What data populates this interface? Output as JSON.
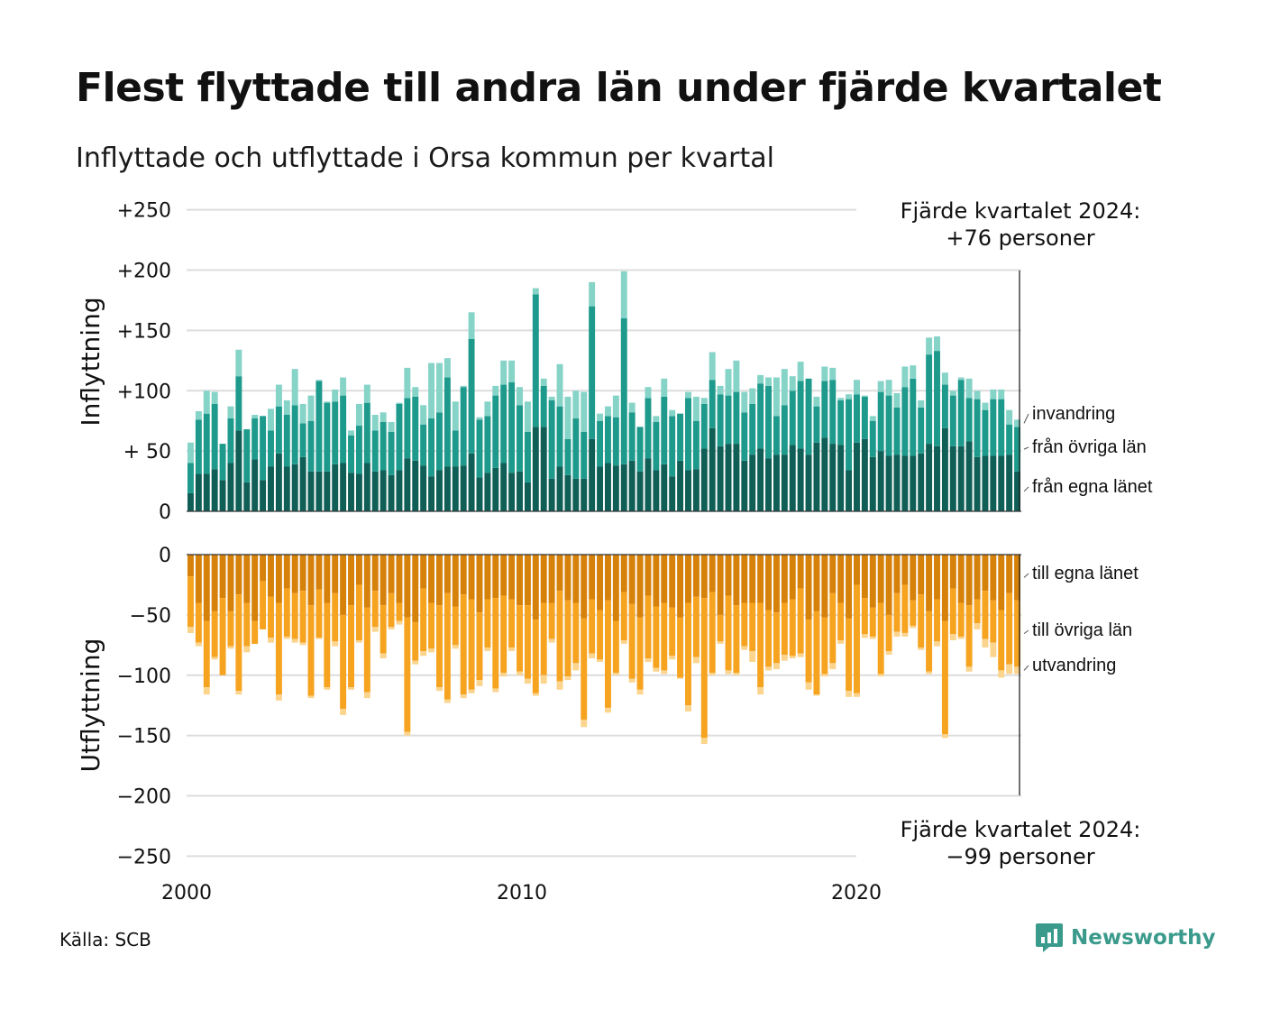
{
  "title": "Flest flyttade till andra län under fjärde kvartalet",
  "subtitle": "Inflyttade och utflyttade i Orsa kommun per kvartal",
  "source": "Källa: SCB",
  "brand": "Newsworthy",
  "colors": {
    "in_egna": "#0f5f57",
    "in_ovriga": "#1e9a8c",
    "in_invandring": "#86d3c8",
    "out_egna": "#d68109",
    "out_ovriga": "#f6a31f",
    "out_utvandring": "#fbd48e",
    "grid": "#dddddd",
    "brand": "#3a9a8c"
  },
  "chart_data": {
    "type": "bar",
    "stacked": true,
    "x_unit": "year-quarter",
    "x_ticks": [
      "2000",
      "2010",
      "2020"
    ],
    "top_panel": {
      "ylabel": "Inflyttning",
      "ylim": [
        0,
        250
      ],
      "y_ticks": [
        0,
        50,
        100,
        150,
        200,
        250
      ],
      "y_tick_labels": [
        "0",
        "+ 50",
        "+100",
        "+150",
        "+200",
        "+250"
      ],
      "annotation": {
        "line1": "Fjärde kvartalet 2024:",
        "line2": "+76 personer"
      },
      "series": [
        {
          "name": "från egna länet",
          "values": [
            15,
            31,
            31,
            35,
            26,
            40,
            67,
            24,
            43,
            26,
            37,
            48,
            37,
            39,
            45,
            33,
            33,
            33,
            39,
            40,
            32,
            31,
            40,
            33,
            34,
            30,
            34,
            44,
            42,
            38,
            29,
            34,
            37,
            37,
            38,
            48,
            28,
            32,
            36,
            40,
            32,
            33,
            24,
            70,
            70,
            27,
            37,
            30,
            27,
            27,
            60,
            37,
            40,
            38,
            39,
            42,
            33,
            44,
            34,
            39,
            29,
            42,
            34,
            35,
            52,
            69,
            54,
            56,
            56,
            42,
            47,
            52,
            44,
            47,
            47,
            55,
            52,
            47,
            57,
            61,
            56,
            55,
            34,
            57,
            60,
            45,
            50,
            46,
            47,
            46,
            46,
            48,
            56,
            54,
            69,
            54,
            54,
            58,
            45,
            46,
            46,
            46,
            47,
            33
          ]
        },
        {
          "name": "från övriga län",
          "values": [
            25,
            45,
            50,
            54,
            30,
            37,
            45,
            44,
            34,
            53,
            30,
            39,
            43,
            49,
            28,
            42,
            75,
            57,
            52,
            56,
            31,
            40,
            50,
            34,
            40,
            36,
            55,
            50,
            53,
            34,
            48,
            48,
            74,
            30,
            65,
            95,
            48,
            47,
            60,
            65,
            75,
            55,
            42,
            110,
            34,
            65,
            50,
            30,
            50,
            39,
            110,
            38,
            39,
            40,
            121,
            40,
            37,
            50,
            40,
            56,
            50,
            39,
            60,
            40,
            37,
            40,
            43,
            40,
            43,
            40,
            42,
            54,
            60,
            32,
            41,
            45,
            56,
            63,
            30,
            47,
            53,
            37,
            59,
            40,
            35,
            30,
            49,
            50,
            39,
            57,
            64,
            38,
            74,
            79,
            36,
            42,
            55,
            36,
            48,
            38,
            47,
            47,
            25,
            37
          ]
        },
        {
          "name": "invandring",
          "values": [
            17,
            7,
            19,
            10,
            0,
            10,
            22,
            0,
            3,
            0,
            18,
            18,
            12,
            30,
            16,
            21,
            1,
            1,
            10,
            15,
            4,
            18,
            15,
            13,
            8,
            8,
            1,
            25,
            8,
            16,
            46,
            41,
            16,
            24,
            1,
            22,
            2,
            12,
            8,
            20,
            18,
            15,
            25,
            5,
            6,
            3,
            35,
            35,
            23,
            33,
            20,
            6,
            8,
            18,
            39,
            8,
            0,
            9,
            5,
            15,
            5,
            0,
            5,
            20,
            5,
            23,
            7,
            22,
            26,
            17,
            13,
            7,
            7,
            32,
            30,
            12,
            16,
            0,
            8,
            12,
            10,
            2,
            4,
            12,
            1,
            4,
            9,
            13,
            12,
            17,
            11,
            6,
            14,
            12,
            10,
            4,
            2,
            16,
            7,
            6,
            8,
            8,
            12,
            6
          ]
        }
      ]
    },
    "bottom_panel": {
      "ylabel": "Utflyttning",
      "ylim": [
        -250,
        0
      ],
      "y_ticks": [
        0,
        -50,
        -100,
        -150,
        -200,
        -250
      ],
      "y_tick_labels": [
        "0",
        "−50",
        "−100",
        "−150",
        "−200",
        "−250"
      ],
      "annotation": {
        "line1": "Fjärde kvartalet 2024:",
        "line2": "−99 personer"
      },
      "series": [
        {
          "name": "till egna länet",
          "values": [
            -18,
            -40,
            -55,
            -47,
            -36,
            -47,
            -33,
            -40,
            -55,
            -22,
            -35,
            -40,
            -28,
            -32,
            -30,
            -42,
            -29,
            -40,
            -32,
            -50,
            -42,
            -25,
            -44,
            -30,
            -42,
            -32,
            -40,
            -52,
            -56,
            -28,
            -40,
            -42,
            -32,
            -43,
            -33,
            -37,
            -48,
            -37,
            -36,
            -34,
            -37,
            -42,
            -42,
            -54,
            -40,
            -40,
            -30,
            -38,
            -40,
            -53,
            -37,
            -46,
            -38,
            -55,
            -31,
            -41,
            -52,
            -34,
            -43,
            -40,
            -44,
            -52,
            -40,
            -35,
            -36,
            -31,
            -50,
            -34,
            -42,
            -40,
            -40,
            -40,
            -46,
            -48,
            -40,
            -37,
            -28,
            -54,
            -47,
            -52,
            -32,
            -40,
            -53,
            -25,
            -36,
            -44,
            -40,
            -50,
            -32,
            -25,
            -38,
            -33,
            -47,
            -37,
            -55,
            -28,
            -40,
            -42,
            -37,
            -30,
            -38,
            -46,
            -32,
            -38
          ]
        },
        {
          "name": "till övriga län",
          "values": [
            -42,
            -33,
            -55,
            -38,
            -64,
            -29,
            -80,
            -36,
            -19,
            -40,
            -34,
            -76,
            -40,
            -38,
            -43,
            -75,
            -40,
            -70,
            -40,
            -78,
            -68,
            -46,
            -70,
            -30,
            -40,
            -28,
            -15,
            -95,
            -32,
            -52,
            -38,
            -68,
            -88,
            -32,
            -83,
            -75,
            -56,
            -40,
            -75,
            -64,
            -40,
            -55,
            -61,
            -61,
            -60,
            -30,
            -75,
            -63,
            -50,
            -84,
            -45,
            -41,
            -89,
            -43,
            -40,
            -62,
            -60,
            -52,
            -51,
            -56,
            -40,
            -50,
            -85,
            -50,
            -116,
            -67,
            -22,
            -62,
            -56,
            -36,
            -40,
            -70,
            -47,
            -42,
            -43,
            -47,
            -54,
            -52,
            -69,
            -47,
            -58,
            -31,
            -60,
            -90,
            -30,
            -24,
            -59,
            -30,
            -32,
            -40,
            -21,
            -44,
            -50,
            -35,
            -94,
            -38,
            -28,
            -51,
            -20,
            -40,
            -35,
            -50,
            -59,
            -55
          ]
        },
        {
          "name": "utvandring",
          "values": [
            -5,
            -3,
            -6,
            -2,
            0,
            -2,
            -3,
            -5,
            0,
            0,
            -4,
            -5,
            -2,
            -3,
            -2,
            -2,
            -1,
            -2,
            -4,
            -5,
            -2,
            -2,
            -5,
            -4,
            -4,
            -2,
            -3,
            -3,
            -3,
            -4,
            -3,
            -3,
            -3,
            -3,
            -3,
            -3,
            -5,
            -3,
            -3,
            -3,
            -3,
            -3,
            -4,
            -2,
            -7,
            -3,
            -7,
            -3,
            -6,
            -6,
            -4,
            -2,
            -4,
            -2,
            -3,
            -3,
            -4,
            -3,
            -3,
            -3,
            -3,
            -1,
            -5,
            -5,
            -5,
            -2,
            -2,
            -3,
            -2,
            -3,
            -9,
            -6,
            -3,
            -5,
            -5,
            -2,
            -3,
            -6,
            -1,
            -2,
            -5,
            -3,
            -5,
            -3,
            -3,
            -2,
            -2,
            -3,
            -4,
            -3,
            -2,
            -2,
            -2,
            -4,
            -3,
            -5,
            -2,
            -4,
            -5,
            -7,
            -12,
            -6,
            -8,
            -6
          ]
        }
      ]
    }
  }
}
